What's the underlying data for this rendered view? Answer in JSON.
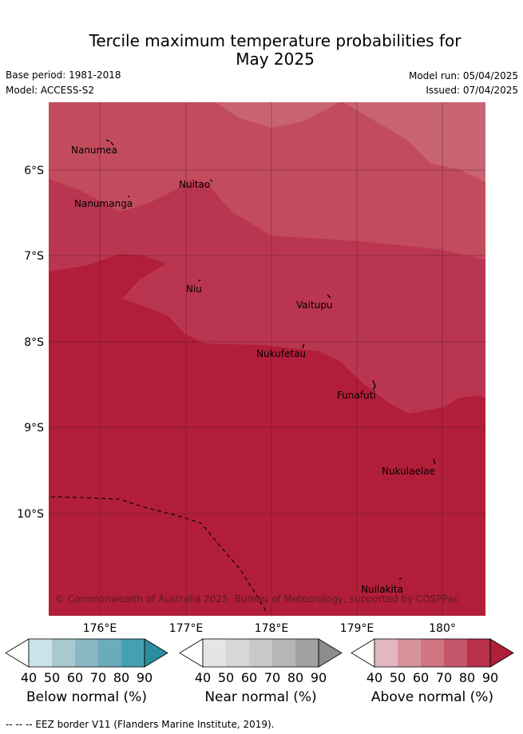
{
  "title": {
    "line1": "Tercile maximum temperature probabilities for",
    "line2": "May 2025"
  },
  "meta": {
    "base_period": "Base period: 1981-2018",
    "model": "Model: ACCESS-S2",
    "model_run": "Model run: 05/04/2025",
    "issued": "Issued: 07/04/2025"
  },
  "map": {
    "y_ticks": [
      "6°S",
      "7°S",
      "8°S",
      "9°S",
      "10°S"
    ],
    "x_ticks": [
      "176°E",
      "177°E",
      "178°E",
      "179°E",
      "180°"
    ],
    "places": [
      {
        "name": "Nanumea"
      },
      {
        "name": "Nuitao"
      },
      {
        "name": "Nanumanga"
      },
      {
        "name": "Niu"
      },
      {
        "name": "Vaitupu"
      },
      {
        "name": "Nukufetau"
      },
      {
        "name": "Funafuti"
      },
      {
        "name": "Nukulaelae"
      },
      {
        "name": "Nuilakita"
      }
    ],
    "copyright": "© Commonwealth of Australia 2025, Bureau of Meteorology, supported by COSPPac"
  },
  "legends": [
    {
      "name": "below",
      "title": "Below normal (%)",
      "ticks": [
        "40",
        "50",
        "60",
        "70",
        "80",
        "90"
      ],
      "colors": [
        "#ffffff",
        "#cde3ea",
        "#a8c9cf",
        "#8bb7c4",
        "#6aabbc",
        "#47a0b1",
        "#2b8c9e"
      ]
    },
    {
      "name": "near",
      "title": "Near normal (%)",
      "ticks": [
        "40",
        "50",
        "60",
        "70",
        "80",
        "90"
      ],
      "colors": [
        "#ffffff",
        "#e5e5e5",
        "#d7d7d7",
        "#c9c9c9",
        "#b6b6b6",
        "#a1a1a1",
        "#8c8c8c"
      ]
    },
    {
      "name": "above",
      "title": "Above normal (%)",
      "ticks": [
        "40",
        "50",
        "60",
        "70",
        "80",
        "90"
      ],
      "colors": [
        "#ffffff",
        "#e3b7bf",
        "#d7939b",
        "#d07680",
        "#c3566a",
        "#b9304a",
        "#b01e39"
      ]
    }
  ],
  "footnote": "-- -- -- EEZ border V11 (Flanders Marine Institute, 2019)."
}
